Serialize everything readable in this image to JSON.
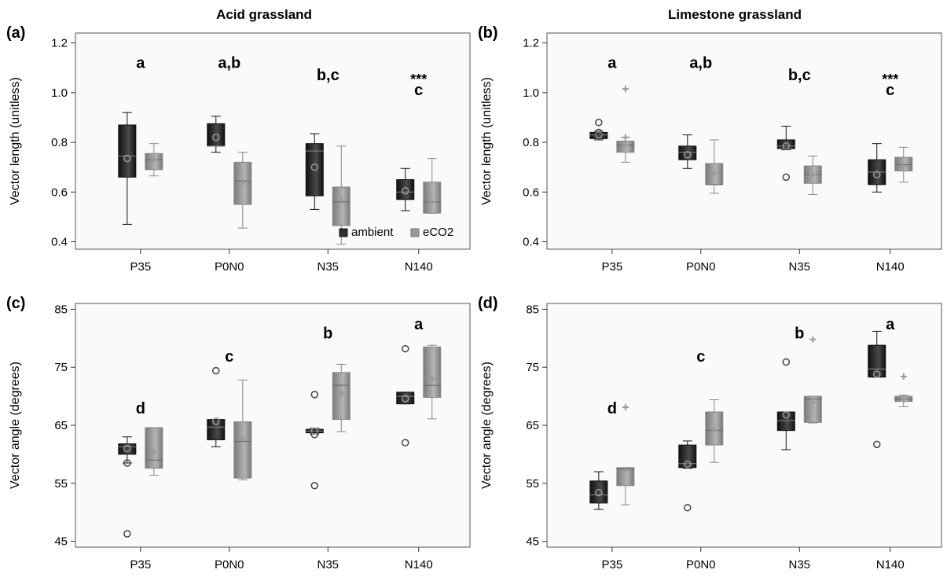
{
  "figure": {
    "columns": [
      "Acid grassland",
      "Limestone grassland"
    ],
    "legend": {
      "ambient": "ambient",
      "eco2": "eCO2"
    },
    "colors": {
      "ambient": "#2e2e2e",
      "eco2": "#9a9a9a",
      "frame": "#555555",
      "plot_bg": "#fafafa"
    }
  },
  "chart_data": [
    {
      "panel": "(a)",
      "type": "box",
      "column": "Acid grassland",
      "ylabel": "Vector length (unitless)",
      "ylim": [
        0.37,
        1.24
      ],
      "yticks": [
        0.4,
        0.6,
        0.8,
        1.0,
        1.2
      ],
      "yticklabels": [
        "0.4",
        "0.6",
        "0.8",
        "1.0",
        "1.2"
      ],
      "categories": [
        "P35",
        "P0N0",
        "N35",
        "N140"
      ],
      "letters": [
        "a",
        "a,b",
        "b,c",
        "c"
      ],
      "letter_y": [
        1.1,
        1.1,
        1.05,
        0.99
      ],
      "significance": [
        null,
        null,
        null,
        "***"
      ],
      "legend_shown": true,
      "series": [
        {
          "name": "ambient",
          "boxes": [
            {
              "min": 0.47,
              "q1": 0.66,
              "median": 0.745,
              "q3": 0.87,
              "max": 0.92,
              "mean": 0.735,
              "outliers": []
            },
            {
              "min": 0.76,
              "q1": 0.785,
              "median": 0.785,
              "q3": 0.875,
              "max": 0.905,
              "mean": 0.82,
              "outliers": []
            },
            {
              "min": 0.53,
              "q1": 0.585,
              "median": 0.765,
              "q3": 0.795,
              "max": 0.835,
              "mean": 0.7,
              "outliers": []
            },
            {
              "min": 0.525,
              "q1": 0.57,
              "median": 0.6,
              "q3": 0.65,
              "max": 0.695,
              "mean": 0.605,
              "outliers": []
            }
          ]
        },
        {
          "name": "eCO2",
          "boxes": [
            {
              "min": 0.665,
              "q1": 0.69,
              "median": 0.73,
              "q3": 0.755,
              "max": 0.795,
              "mean": 0.73,
              "outliers": []
            },
            {
              "min": 0.455,
              "q1": 0.55,
              "median": 0.645,
              "q3": 0.72,
              "max": 0.76,
              "mean": 0.64,
              "outliers": []
            },
            {
              "min": 0.39,
              "q1": 0.465,
              "median": 0.56,
              "q3": 0.62,
              "max": 0.785,
              "mean": 0.565,
              "outliers": []
            },
            {
              "min": 0.515,
              "q1": 0.515,
              "median": 0.56,
              "q3": 0.64,
              "max": 0.735,
              "mean": 0.56,
              "outliers": []
            }
          ]
        }
      ]
    },
    {
      "panel": "(b)",
      "type": "box",
      "column": "Limestone grassland",
      "ylabel": "Vector length (unitless)",
      "ylim": [
        0.37,
        1.24
      ],
      "yticks": [
        0.4,
        0.6,
        0.8,
        1.0,
        1.2
      ],
      "yticklabels": [
        "0.4",
        "0.6",
        "0.8",
        "1.0",
        "1.2"
      ],
      "categories": [
        "P35",
        "P0N0",
        "N35",
        "N140"
      ],
      "letters": [
        "a",
        "a,b",
        "b,c",
        "c"
      ],
      "letter_y": [
        1.1,
        1.1,
        1.05,
        0.99
      ],
      "significance": [
        null,
        null,
        null,
        "***"
      ],
      "legend_shown": false,
      "series": [
        {
          "name": "ambient",
          "boxes": [
            {
              "min": 0.81,
              "q1": 0.815,
              "median": 0.83,
              "q3": 0.84,
              "max": 0.845,
              "mean": 0.83,
              "outliers": [
                0.88,
                0.84
              ]
            },
            {
              "min": 0.695,
              "q1": 0.73,
              "median": 0.76,
              "q3": 0.785,
              "max": 0.83,
              "mean": 0.75,
              "outliers": []
            },
            {
              "min": 0.77,
              "q1": 0.775,
              "median": 0.785,
              "q3": 0.81,
              "max": 0.865,
              "mean": 0.785,
              "outliers": [
                0.66
              ]
            },
            {
              "min": 0.6,
              "q1": 0.63,
              "median": 0.68,
              "q3": 0.73,
              "max": 0.795,
              "mean": 0.67,
              "outliers": []
            }
          ]
        },
        {
          "name": "eCO2",
          "boxes": [
            {
              "min": 0.72,
              "q1": 0.76,
              "median": 0.79,
              "q3": 0.805,
              "max": 0.82,
              "mean": 0.79,
              "outliers": [
                1.015,
                0.82
              ]
            },
            {
              "min": 0.595,
              "q1": 0.63,
              "median": 0.63,
              "q3": 0.715,
              "max": 0.81,
              "mean": 0.675,
              "outliers": []
            },
            {
              "min": 0.59,
              "q1": 0.635,
              "median": 0.67,
              "q3": 0.705,
              "max": 0.745,
              "mean": 0.67,
              "outliers": []
            },
            {
              "min": 0.64,
              "q1": 0.685,
              "median": 0.71,
              "q3": 0.74,
              "max": 0.78,
              "mean": 0.705,
              "outliers": []
            }
          ]
        }
      ]
    },
    {
      "panel": "(c)",
      "type": "box",
      "column": "Acid grassland",
      "ylabel": "Vector angle (degrees)",
      "ylim": [
        44,
        86
      ],
      "yticks": [
        45,
        55,
        65,
        75,
        85
      ],
      "yticklabels": [
        "45",
        "55",
        "65",
        "75",
        "85"
      ],
      "categories": [
        "P35",
        "P0N0",
        "N35",
        "N140"
      ],
      "letters": [
        "d",
        "c",
        "b",
        "a"
      ],
      "letter_y": [
        67,
        76,
        80,
        81.5
      ],
      "significance": [
        null,
        null,
        null,
        null
      ],
      "legend_shown": false,
      "series": [
        {
          "name": "ambient",
          "boxes": [
            {
              "min": 58.5,
              "q1": 60,
              "median": 61.3,
              "q3": 61.8,
              "max": 63,
              "mean": 61,
              "outliers": [
                58.5,
                46.3
              ]
            },
            {
              "min": 61.3,
              "q1": 62.5,
              "median": 64.7,
              "q3": 66,
              "max": 66,
              "mean": 65.7,
              "outliers": [
                74.4
              ]
            },
            {
              "min": 63.5,
              "q1": 63.7,
              "median": 64,
              "q3": 64.3,
              "max": 64.5,
              "mean": 64,
              "outliers": [
                63.4,
                70.3,
                54.6
              ]
            },
            {
              "min": 68.7,
              "q1": 68.7,
              "median": 70,
              "q3": 70.7,
              "max": 70.7,
              "mean": 69.6,
              "outliers": [
                78.2,
                62
              ]
            }
          ]
        },
        {
          "name": "eCO2",
          "boxes": [
            {
              "min": 56.4,
              "q1": 57.6,
              "median": 59,
              "q3": 64.6,
              "max": 64.6,
              "mean": 60.4,
              "outliers": []
            },
            {
              "min": 55.6,
              "q1": 55.9,
              "median": 62.2,
              "q3": 65.6,
              "max": 72.8,
              "mean": 62.5,
              "outliers": []
            },
            {
              "min": 63.9,
              "q1": 66,
              "median": 71.9,
              "q3": 74.1,
              "max": 75.5,
              "mean": 70.5,
              "outliers": []
            },
            {
              "min": 66.1,
              "q1": 69.8,
              "median": 71.9,
              "q3": 78.5,
              "max": 78.8,
              "mean": 73,
              "outliers": []
            }
          ]
        }
      ]
    },
    {
      "panel": "(d)",
      "type": "box",
      "column": "Limestone grassland",
      "ylabel": "Vector angle (degrees)",
      "ylim": [
        44,
        86
      ],
      "yticks": [
        45,
        55,
        65,
        75,
        85
      ],
      "yticklabels": [
        "45",
        "55",
        "65",
        "75",
        "85"
      ],
      "categories": [
        "P35",
        "P0N0",
        "N35",
        "N140"
      ],
      "letters": [
        "d",
        "c",
        "b",
        "a"
      ],
      "letter_y": [
        67,
        76,
        80,
        81.5
      ],
      "significance": [
        null,
        null,
        null,
        null
      ],
      "legend_shown": false,
      "series": [
        {
          "name": "ambient",
          "boxes": [
            {
              "min": 50.5,
              "q1": 51.6,
              "median": 53,
              "q3": 55.4,
              "max": 57,
              "mean": 53.4,
              "outliers": []
            },
            {
              "min": 57.6,
              "q1": 57.7,
              "median": 58.4,
              "q3": 61.6,
              "max": 62.3,
              "mean": 58.3,
              "outliers": [
                50.8
              ]
            },
            {
              "min": 60.8,
              "q1": 64.1,
              "median": 65.8,
              "q3": 67.3,
              "max": 67.3,
              "mean": 66.8,
              "outliers": [
                75.9
              ]
            },
            {
              "min": 73.3,
              "q1": 73.3,
              "median": 74.7,
              "q3": 78.8,
              "max": 81.2,
              "mean": 73.8,
              "outliers": [
                61.7
              ]
            }
          ]
        },
        {
          "name": "eCO2",
          "boxes": [
            {
              "min": 51.3,
              "q1": 54.6,
              "median": 57.5,
              "q3": 57.7,
              "max": 57.7,
              "mean": 57.3,
              "outliers": [
                68.1
              ]
            },
            {
              "min": 58.6,
              "q1": 61.6,
              "median": 64.1,
              "q3": 67.3,
              "max": 69.4,
              "mean": 64.2,
              "outliers": []
            },
            {
              "min": 65.4,
              "q1": 65.5,
              "median": 69.5,
              "q3": 70,
              "max": 70,
              "mean": 69,
              "outliers": [
                79.8
              ]
            },
            {
              "min": 68.2,
              "q1": 69.1,
              "median": 69.5,
              "q3": 70,
              "max": 70.2,
              "mean": 69.6,
              "outliers": [
                73.4
              ]
            }
          ]
        }
      ]
    }
  ]
}
